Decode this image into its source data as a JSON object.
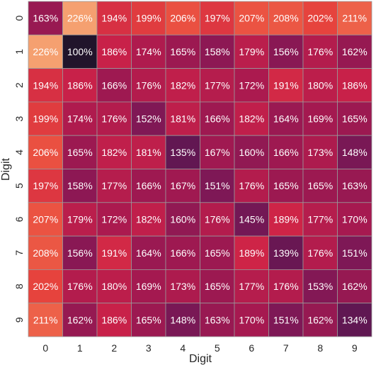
{
  "chart_data": {
    "type": "heatmap",
    "xlabel": "Digit",
    "ylabel": "Digit",
    "x_categories": [
      "0",
      "1",
      "2",
      "3",
      "4",
      "5",
      "6",
      "7",
      "8",
      "9"
    ],
    "y_categories": [
      "0",
      "1",
      "2",
      "3",
      "4",
      "5",
      "6",
      "7",
      "8",
      "9"
    ],
    "value_format": "percent",
    "colormap": "rocket",
    "vrange": [
      100,
      226
    ],
    "values": [
      [
        163,
        226,
        194,
        199,
        206,
        197,
        207,
        208,
        202,
        211
      ],
      [
        226,
        100,
        186,
        174,
        165,
        158,
        179,
        156,
        176,
        162
      ],
      [
        194,
        186,
        166,
        176,
        182,
        177,
        172,
        191,
        180,
        186
      ],
      [
        199,
        174,
        176,
        152,
        181,
        166,
        182,
        164,
        169,
        165
      ],
      [
        206,
        165,
        182,
        181,
        135,
        167,
        160,
        166,
        173,
        148
      ],
      [
        197,
        158,
        177,
        166,
        167,
        151,
        176,
        165,
        165,
        163
      ],
      [
        207,
        179,
        172,
        182,
        160,
        176,
        145,
        189,
        177,
        170
      ],
      [
        208,
        156,
        191,
        164,
        166,
        165,
        189,
        139,
        176,
        151
      ],
      [
        202,
        176,
        180,
        169,
        173,
        165,
        177,
        176,
        153,
        162
      ],
      [
        211,
        162,
        186,
        165,
        148,
        163,
        170,
        151,
        162,
        134
      ]
    ]
  }
}
